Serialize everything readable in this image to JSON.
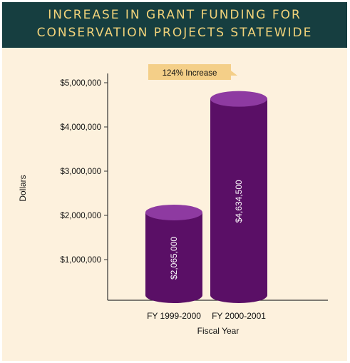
{
  "title_lines": [
    "INCREASE IN GRANT FUNDING FOR",
    "CONSERVATION PROJECTS STATEWIDE"
  ],
  "colors": {
    "title_bg": "#163e40",
    "title_text": "#f2d37a",
    "panel_bg": "#fdf1dd",
    "bar": "#5a0f66",
    "bar_top": "#8e3aa1",
    "callout_bg": "#f4cf88"
  },
  "chart_data": {
    "type": "bar",
    "title": "INCREASE IN GRANT FUNDING FOR CONSERVATION PROJECTS STATEWIDE",
    "xlabel": "Fiscal Year",
    "ylabel": "Dollars",
    "categories": [
      "FY 1999-2000",
      "FY 2000-2001"
    ],
    "values": [
      2065000,
      4634500
    ],
    "value_labels": [
      "$2,065,000",
      "$4,634,500"
    ],
    "ylim": [
      0,
      5000000
    ],
    "yticks": [
      1000000,
      2000000,
      3000000,
      4000000,
      5000000
    ],
    "ytick_labels": [
      "$1,000,000",
      "$2,000,000",
      "$3,000,000",
      "$4,000,000",
      "$5,000,000"
    ],
    "annotation": "124% Increase",
    "grid": false,
    "legend": "none"
  }
}
